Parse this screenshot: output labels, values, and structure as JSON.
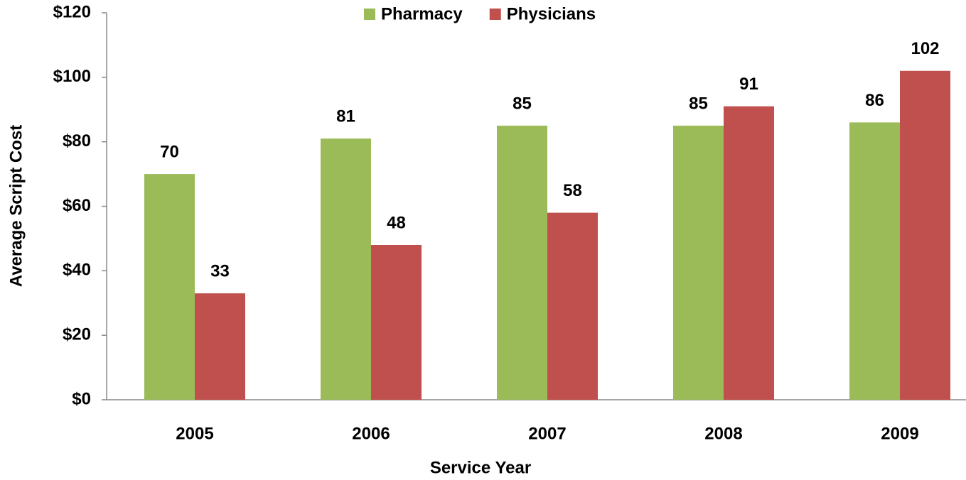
{
  "chart_data": {
    "type": "bar",
    "categories": [
      "2005",
      "2006",
      "2007",
      "2008",
      "2009"
    ],
    "series": [
      {
        "name": "Pharmacy",
        "color": "#9bbb59",
        "values": [
          70,
          81,
          85,
          85,
          86
        ]
      },
      {
        "name": "Physicians",
        "color": "#c0504d",
        "values": [
          33,
          48,
          58,
          91,
          102
        ]
      }
    ],
    "ylim": [
      0,
      120
    ],
    "yticks": [
      {
        "value": 0,
        "label": "$0"
      },
      {
        "value": 20,
        "label": "$20"
      },
      {
        "value": 40,
        "label": "$40"
      },
      {
        "value": 60,
        "label": "$60"
      },
      {
        "value": 80,
        "label": "$80"
      },
      {
        "value": 100,
        "label": "$100"
      },
      {
        "value": 120,
        "label": "$120"
      }
    ],
    "xlabel": "Service Year",
    "ylabel": "Average Script Cost",
    "legend": "top",
    "grid": false
  }
}
